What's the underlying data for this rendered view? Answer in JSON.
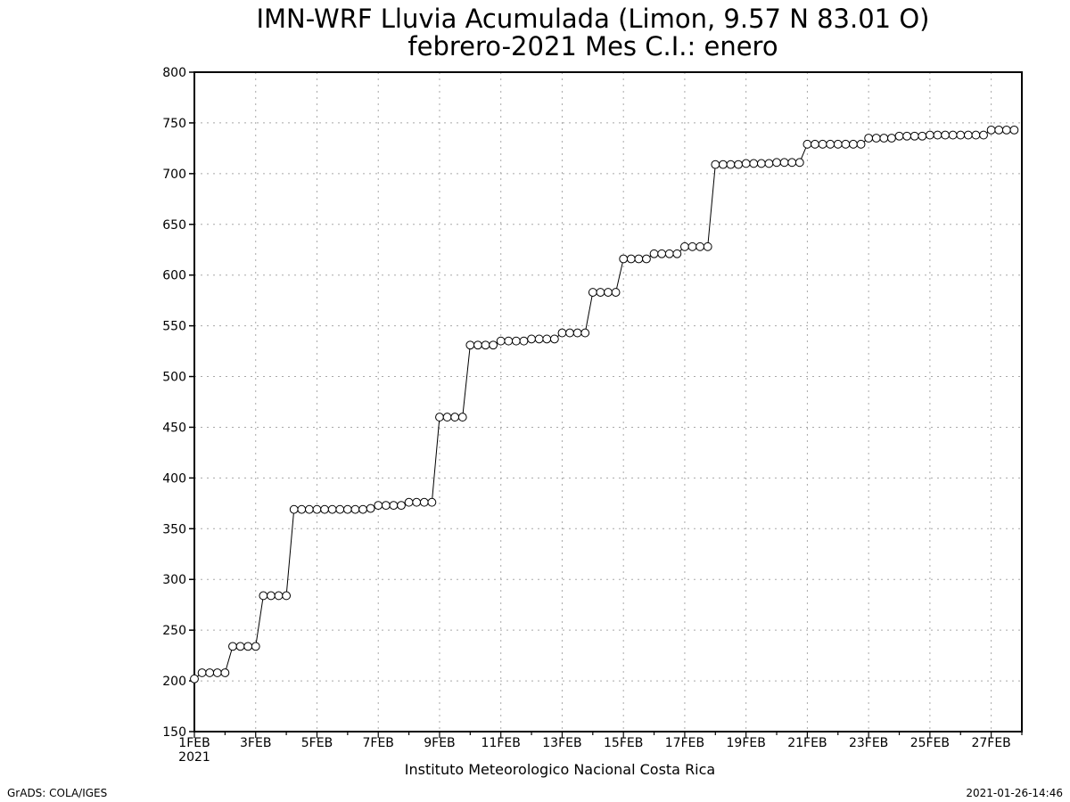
{
  "chart_data": {
    "type": "line",
    "title": "IMN-WRF  Lluvia Acumulada (Limon, 9.57  N 83.01  O)",
    "subtitle": "febrero-2021 Mes C.I.: enero",
    "xlabel": "",
    "ylabel": "",
    "credit": "Instituto Meteorologico Nacional Costa Rica",
    "ylim": [
      150,
      800
    ],
    "yticks": [
      150,
      200,
      250,
      300,
      350,
      400,
      450,
      500,
      550,
      600,
      650,
      700,
      750,
      800
    ],
    "xlim": [
      "2021-02-01 00:00",
      "2021-02-28 00:00"
    ],
    "x_tick_labels": [
      "1FEB",
      "3FEB",
      "5FEB",
      "7FEB",
      "9FEB",
      "11FEB",
      "13FEB",
      "15FEB",
      "17FEB",
      "19FEB",
      "21FEB",
      "23FEB",
      "25FEB",
      "27FEB"
    ],
    "x_tick_year": "2021",
    "x_step": "6 hours",
    "grid": true,
    "marker": "open-circle",
    "series": [
      {
        "values": [
          202,
          208,
          208,
          208,
          208,
          234,
          234,
          234,
          234,
          284,
          284,
          284,
          284,
          369,
          369,
          369,
          369,
          369,
          369,
          369,
          369,
          369,
          369,
          370,
          373,
          373,
          373,
          373,
          376,
          376,
          376,
          376,
          460,
          460,
          460,
          460,
          531,
          531,
          531,
          531,
          535,
          535,
          535,
          535,
          537,
          537,
          537,
          537,
          543,
          543,
          543,
          543,
          583,
          583,
          583,
          583,
          616,
          616,
          616,
          616,
          621,
          621,
          621,
          621,
          628,
          628,
          628,
          628,
          709,
          709,
          709,
          709,
          710,
          710,
          710,
          710,
          711,
          711,
          711,
          711,
          729,
          729,
          729,
          729,
          729,
          729,
          729,
          729,
          735,
          735,
          735,
          735,
          737,
          737,
          737,
          737,
          738,
          738,
          738,
          738,
          738,
          738,
          738,
          738,
          743,
          743,
          743,
          743
        ]
      }
    ]
  },
  "footer": {
    "left": "GrADS: COLA/IGES",
    "right": "2021-01-26-14:46"
  }
}
